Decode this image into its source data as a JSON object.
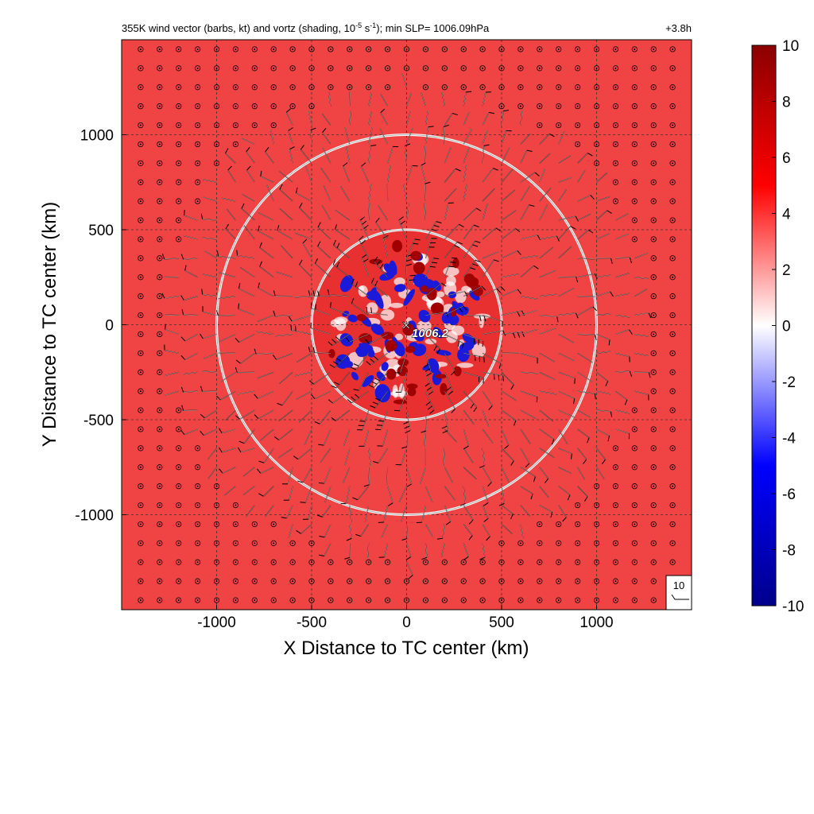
{
  "chart_data": {
    "type": "heatmap",
    "title": "355K wind vector (barbs, kt) and vortz (shading, 10",
    "title_sup1": "-5",
    "title_mid": " s",
    "title_sup2": "-1",
    "title_end": "); min SLP= 1006.09hPa",
    "time_label": "+3.8h",
    "xlabel": "X Distance to TC center (km)",
    "ylabel": "Y Distance to TC center (km)",
    "xlim": [
      -1500,
      1500
    ],
    "ylim": [
      -1500,
      1500
    ],
    "xticks": [
      -1000,
      -500,
      0,
      500,
      1000
    ],
    "yticks": [
      -1000,
      -500,
      0,
      500,
      1000
    ],
    "xtick_labels": [
      "-1000",
      "-500",
      "0",
      "500",
      "1000"
    ],
    "ytick_labels": [
      "-1000",
      "-500",
      "0",
      "500",
      "1000"
    ],
    "grid": true,
    "grid_style": "dashed",
    "background_vorticity": 5,
    "rings_km": [
      500,
      1000
    ],
    "center": {
      "x": 0,
      "y": 0,
      "marker": "×",
      "slp_label": "1006.2"
    },
    "legend_barb_label": "10",
    "colorbar": {
      "min": -10,
      "max": 10,
      "ticks": [
        10,
        8,
        6,
        4,
        2,
        0,
        -2,
        -4,
        -6,
        -8,
        -10
      ],
      "tick_labels": [
        "10",
        "8",
        "6",
        "4",
        "2",
        "0",
        "-2",
        "-4",
        "-6",
        "-8",
        "-10"
      ],
      "colors": [
        "#00008b",
        "#0000ff",
        "#ffffff",
        "#ff0000",
        "#8b0000"
      ]
    },
    "colors": {
      "field": "#f04444",
      "inner": "#e83030",
      "negative": "#1a1ad8",
      "ring": "#ffffff"
    }
  }
}
